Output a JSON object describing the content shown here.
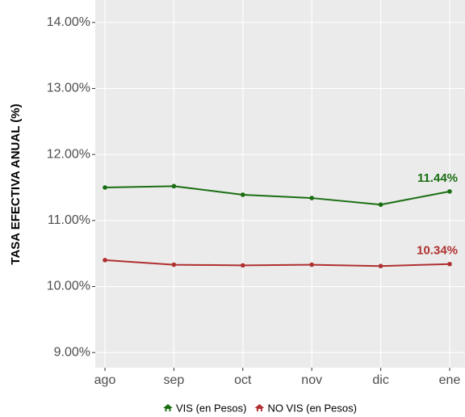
{
  "chart_data": {
    "type": "line",
    "y_label": "TASA EFECTIVA ANUAL (%)",
    "categories": [
      "ago",
      "sep",
      "oct",
      "nov",
      "dic",
      "ene"
    ],
    "series": [
      {
        "name": "VIS (en Pesos)",
        "color": "#1a6e12",
        "values": [
          11.5,
          11.52,
          11.39,
          11.34,
          11.24,
          11.44
        ],
        "value_labels": [
          null,
          null,
          null,
          null,
          null,
          "11.44%"
        ]
      },
      {
        "name": "NO VIS (en Pesos)",
        "color": "#b03030",
        "values": [
          10.4,
          10.33,
          10.32,
          10.33,
          10.31,
          10.34
        ],
        "value_labels": [
          null,
          null,
          null,
          null,
          null,
          "10.34%"
        ]
      }
    ],
    "ylim": [
      8.77,
      14.34
    ],
    "yticks": [
      {
        "value": 9,
        "label": "9.00%"
      },
      {
        "value": 10,
        "label": "10.00%"
      },
      {
        "value": 11,
        "label": "11.00%"
      },
      {
        "value": 12,
        "label": "12.00%"
      },
      {
        "value": 13,
        "label": "13.00%"
      },
      {
        "value": 14,
        "label": "14.00%"
      }
    ],
    "grid": true,
    "legend": "bottom"
  }
}
